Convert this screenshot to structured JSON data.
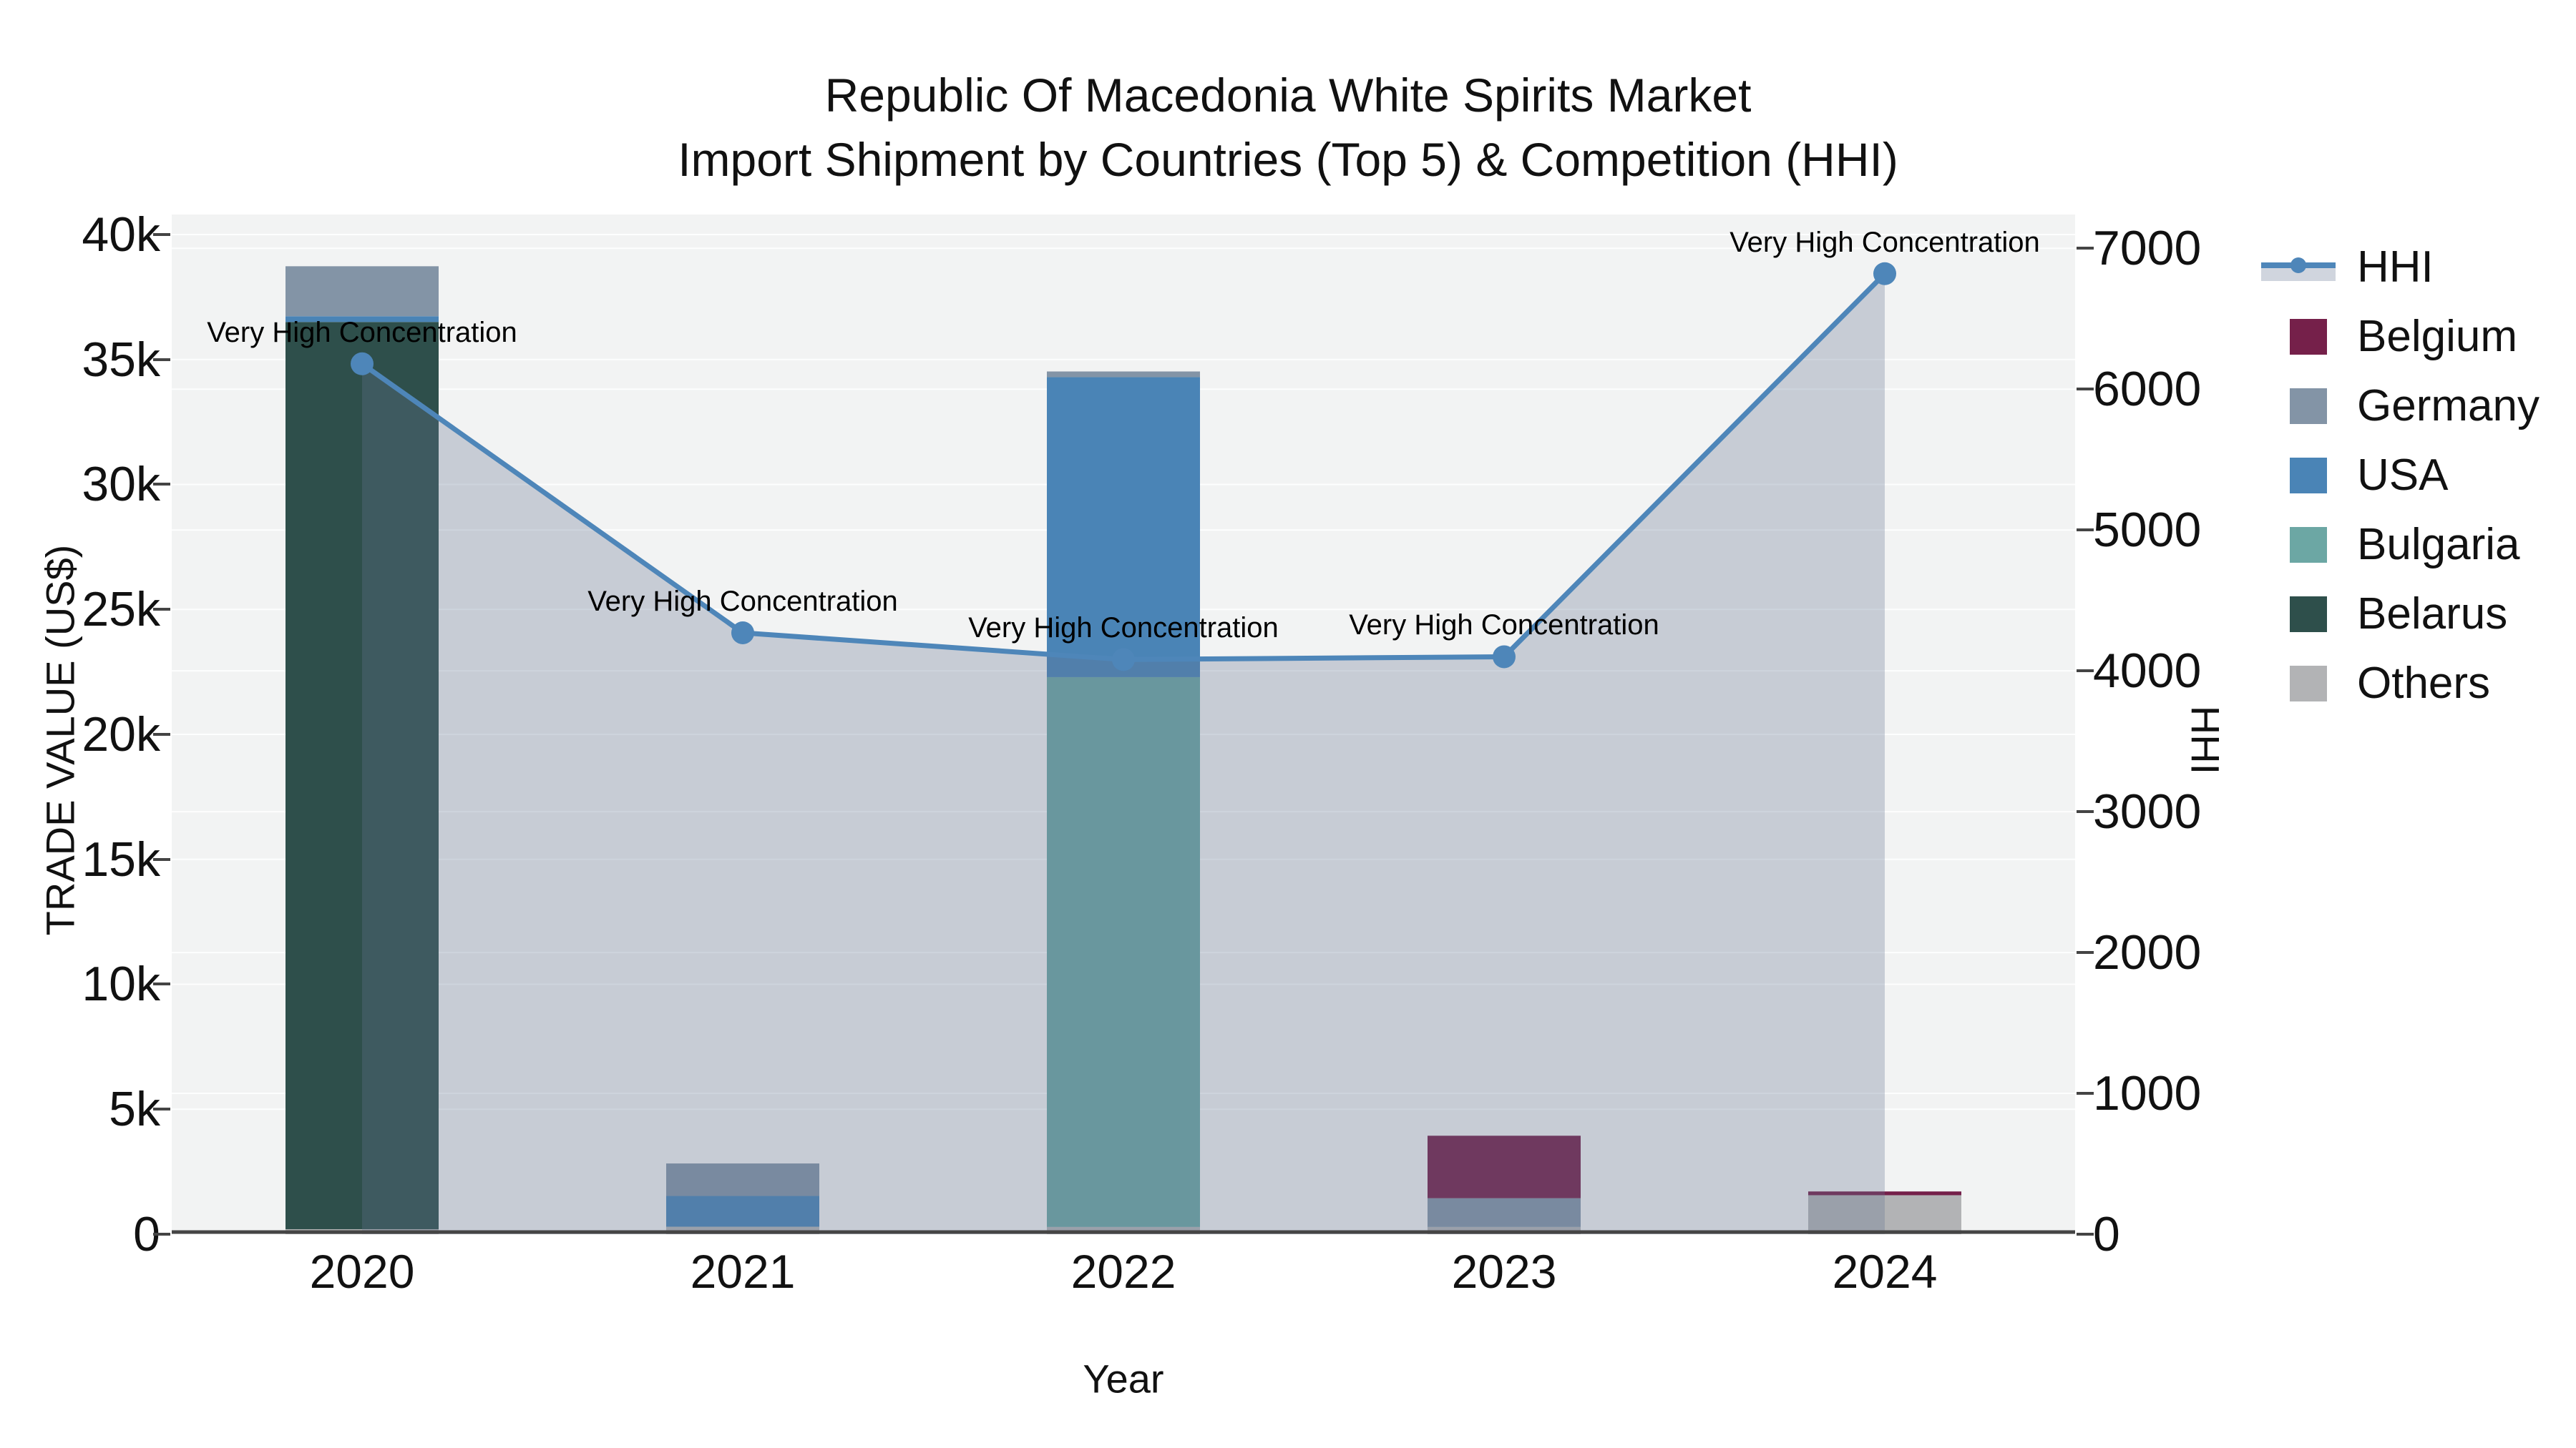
{
  "title": {
    "line1": "Republic Of Macedonia White Spirits Market",
    "line2": "Import Shipment by Countries (Top 5) & Competition (HHI)"
  },
  "y_left_axis": {
    "title": "TRADE VALUE (US$)",
    "tick_labels": [
      "0",
      "5k",
      "10k",
      "15k",
      "20k",
      "25k",
      "30k",
      "35k",
      "40k"
    ],
    "tick_values": [
      0,
      5000,
      10000,
      15000,
      20000,
      25000,
      30000,
      35000,
      40000
    ]
  },
  "y_right_axis": {
    "title": "HHI",
    "tick_labels": [
      "0",
      "1000",
      "2000",
      "3000",
      "4000",
      "5000",
      "6000",
      "7000"
    ],
    "tick_values": [
      0,
      1000,
      2000,
      3000,
      4000,
      5000,
      6000,
      7000
    ]
  },
  "x_axis": {
    "title": "Year",
    "categories": [
      "2020",
      "2021",
      "2022",
      "2023",
      "2024"
    ]
  },
  "legend": {
    "entries": [
      {
        "label": "HHI",
        "type": "line",
        "color": "#4E86B9"
      },
      {
        "label": "Belgium",
        "type": "box",
        "color": "#75204A"
      },
      {
        "label": "Germany",
        "type": "box",
        "color": "#8394A6"
      },
      {
        "label": "USA",
        "type": "box",
        "color": "#4A84B6"
      },
      {
        "label": "Bulgaria",
        "type": "box",
        "color": "#6CA7A4"
      },
      {
        "label": "Belarus",
        "type": "box",
        "color": "#2E4F4B"
      },
      {
        "label": "Others",
        "type": "box",
        "color": "#B2B3B5"
      }
    ]
  },
  "colors": {
    "plot_background": "#F2F3F3",
    "gridline": "rgba(255,255,255,0.85)",
    "zero_line": "#454545",
    "hhi_line": "#4E86B9",
    "hhi_area_fill": "rgba(101,115,147,0.30)"
  },
  "chart_data": {
    "type": "bar+line",
    "title": "Republic Of Macedonia White Spirits Market — Import Shipment by Countries (Top 5) & Competition (HHI)",
    "categories": [
      "2020",
      "2021",
      "2022",
      "2023",
      "2024"
    ],
    "bar_value_unit": "US$",
    "stack_order_bottom_to_top": [
      "Others",
      "Belarus",
      "Bulgaria",
      "USA",
      "Germany",
      "Belgium"
    ],
    "series": [
      {
        "name": "Belgium",
        "color": "#75204A",
        "values": [
          0,
          0,
          0,
          2500,
          150
        ]
      },
      {
        "name": "Germany",
        "color": "#8394A6",
        "values": [
          2000,
          1300,
          230,
          1150,
          0
        ]
      },
      {
        "name": "USA",
        "color": "#4A84B6",
        "values": [
          230,
          1230,
          12000,
          0,
          0
        ]
      },
      {
        "name": "Bulgaria",
        "color": "#6CA7A4",
        "values": [
          0,
          0,
          22000,
          0,
          0
        ]
      },
      {
        "name": "Belarus",
        "color": "#2E4F4B",
        "values": [
          36300,
          0,
          0,
          0,
          0
        ]
      },
      {
        "name": "Others",
        "color": "#B2B3B5",
        "values": [
          200,
          300,
          290,
          290,
          1560
        ]
      }
    ],
    "line_series": {
      "name": "HHI",
      "axis": "right",
      "color": "#4E86B9",
      "fill_color": "rgba(101,115,147,0.30)",
      "values": [
        6180,
        4270,
        4080,
        4100,
        6820
      ]
    },
    "annotations": [
      {
        "x_index": 0,
        "text": "Very High Concentration"
      },
      {
        "x_index": 1,
        "text": "Very High Concentration"
      },
      {
        "x_index": 2,
        "text": "Very High Concentration"
      },
      {
        "x_index": 3,
        "text": "Very High Concentration"
      },
      {
        "x_index": 4,
        "text": "Very High Concentration"
      }
    ],
    "y_left_range": [
      0,
      40800
    ],
    "y_right_range": [
      0,
      7240
    ],
    "legend_position": "right",
    "grid": true
  }
}
